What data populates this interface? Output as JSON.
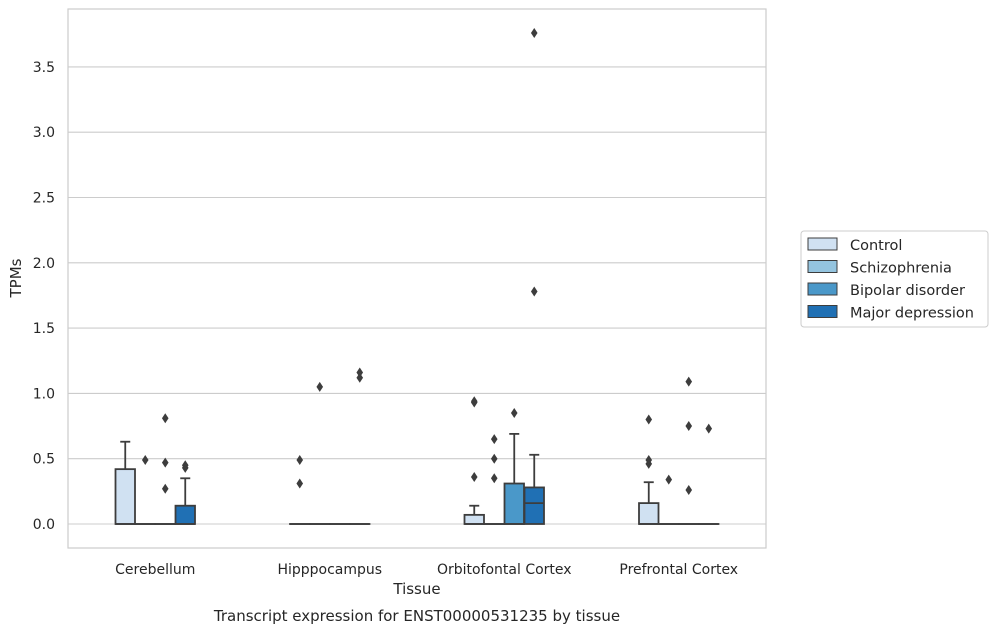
{
  "chart_data": {
    "type": "box",
    "title": "",
    "caption": "Transcript expression for ENST00000531235 by tissue",
    "xlabel": "Tissue",
    "ylabel": "TPMs",
    "ylim": [
      -0.18,
      3.9
    ],
    "yticks": [
      "0.0",
      "0.5",
      "1.0",
      "1.5",
      "2.0",
      "2.5",
      "3.0",
      "3.5"
    ],
    "ytick_values": [
      0,
      0.5,
      1.0,
      1.5,
      2.0,
      2.5,
      3.0,
      3.5
    ],
    "grid": true,
    "legend_position": "right",
    "categories": [
      "Cerebellum",
      "Hipppocampus",
      "Orbitofontal Cortex",
      "Prefrontal Cortex"
    ],
    "series": [
      {
        "name": "Control",
        "color": "#d0e1f2",
        "boxes": [
          {
            "q1": 0,
            "median": 0,
            "q3": 0.42,
            "whisker_low": 0,
            "whisker_high": 0.63,
            "outliers": []
          },
          {
            "q1": 0,
            "median": 0,
            "q3": 0,
            "whisker_low": 0,
            "whisker_high": 0,
            "outliers": [
              0.31,
              0.49
            ]
          },
          {
            "q1": 0,
            "median": 0,
            "q3": 0.07,
            "whisker_low": 0,
            "whisker_high": 0.14,
            "outliers": [
              0.36,
              0.93,
              0.94
            ]
          },
          {
            "q1": 0,
            "median": 0,
            "q3": 0.16,
            "whisker_low": 0,
            "whisker_high": 0.32,
            "outliers": [
              0.46,
              0.49,
              0.8
            ]
          }
        ]
      },
      {
        "name": "Schizophrenia",
        "color": "#94c4df",
        "boxes": [
          {
            "q1": 0,
            "median": 0,
            "q3": 0,
            "whisker_low": 0,
            "whisker_high": 0,
            "outliers": [
              0.49
            ]
          },
          {
            "q1": 0,
            "median": 0,
            "q3": 0,
            "whisker_low": 0,
            "whisker_high": 0,
            "outliers": [
              1.05
            ]
          },
          {
            "q1": 0,
            "median": 0,
            "q3": 0,
            "whisker_low": 0,
            "whisker_high": 0,
            "outliers": [
              0.35,
              0.5,
              0.65
            ]
          },
          {
            "q1": 0,
            "median": 0,
            "q3": 0,
            "whisker_low": 0,
            "whisker_high": 0,
            "outliers": [
              0.34
            ]
          }
        ]
      },
      {
        "name": "Bipolar disorder",
        "color": "#4a98c9",
        "boxes": [
          {
            "q1": 0,
            "median": 0,
            "q3": 0,
            "whisker_low": 0,
            "whisker_high": 0,
            "outliers": [
              0.27,
              0.47,
              0.81
            ]
          },
          {
            "q1": 0,
            "median": 0,
            "q3": 0,
            "whisker_low": 0,
            "whisker_high": 0,
            "outliers": []
          },
          {
            "q1": 0,
            "median": 0,
            "q3": 0.31,
            "whisker_low": 0,
            "whisker_high": 0.69,
            "outliers": [
              0.85
            ]
          },
          {
            "q1": 0,
            "median": 0,
            "q3": 0,
            "whisker_low": 0,
            "whisker_high": 0,
            "outliers": [
              0.26,
              0.75,
              1.09
            ]
          }
        ]
      },
      {
        "name": "Major depression",
        "color": "#2070b4",
        "boxes": [
          {
            "q1": 0,
            "median": 0,
            "q3": 0.14,
            "whisker_low": 0,
            "whisker_high": 0.35,
            "outliers": [
              0.43,
              0.45
            ]
          },
          {
            "q1": 0,
            "median": 0,
            "q3": 0,
            "whisker_low": 0,
            "whisker_high": 0,
            "outliers": [
              1.12,
              1.16
            ]
          },
          {
            "q1": 0,
            "median": 0.16,
            "q3": 0.28,
            "whisker_low": 0,
            "whisker_high": 0.53,
            "outliers": [
              1.78,
              3.76
            ]
          },
          {
            "q1": 0,
            "median": 0,
            "q3": 0,
            "whisker_low": 0,
            "whisker_high": 0,
            "outliers": [
              0.73
            ]
          }
        ]
      }
    ]
  }
}
